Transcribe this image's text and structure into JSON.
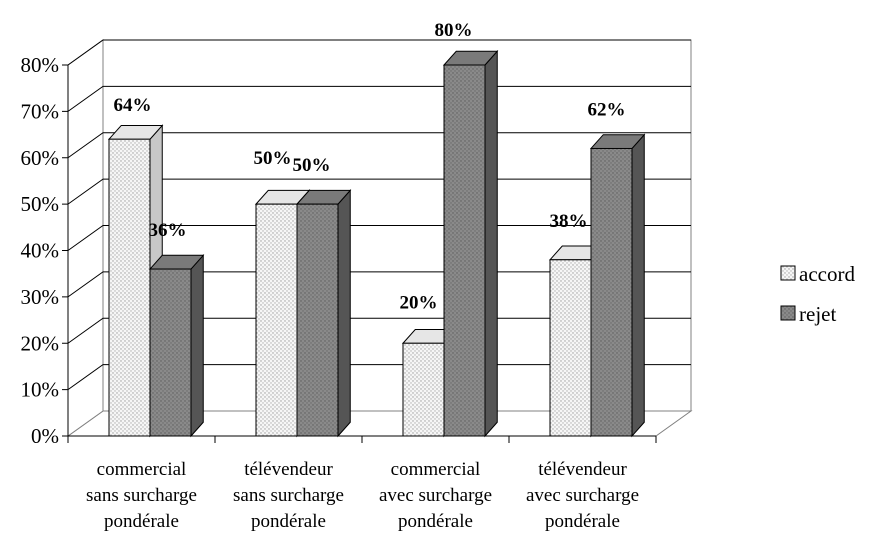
{
  "chart_data": {
    "type": "bar",
    "title": "",
    "xlabel": "",
    "ylabel": "",
    "ylim": [
      0,
      80
    ],
    "y_ticks": [
      "0%",
      "10%",
      "20%",
      "30%",
      "40%",
      "50%",
      "60%",
      "70%",
      "80%"
    ],
    "categories": [
      [
        "commercial",
        "sans surcharge",
        "pondérale"
      ],
      [
        "télévendeur",
        "sans surcharge",
        "pondérale"
      ],
      [
        "commercial",
        "avec surcharge",
        "pondérale"
      ],
      [
        "télévendeur",
        "avec surcharge",
        "pondérale"
      ]
    ],
    "series": [
      {
        "name": "accord",
        "values": [
          64,
          50,
          20,
          38
        ],
        "labels": [
          "64%",
          "50%",
          "20%",
          "38%"
        ],
        "color": "#f2f2f2"
      },
      {
        "name": "rejet",
        "values": [
          36,
          50,
          80,
          62
        ],
        "labels": [
          "36%",
          "50%",
          "80%",
          "62%"
        ],
        "color": "#8c8c8c"
      }
    ],
    "grid": true,
    "legend": "right",
    "style": "3d-clustered-column"
  }
}
